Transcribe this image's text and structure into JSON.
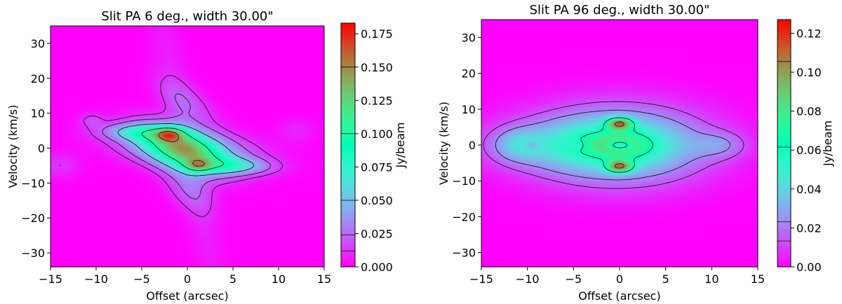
{
  "chart_data": [
    {
      "type": "heatmap",
      "title": "Slit PA 6 deg., width 30.00\"",
      "xlabel": "Offset (arcsec)",
      "ylabel": "Velocity (km/s)",
      "xlim": [
        -15,
        15
      ],
      "ylim": [
        -34,
        35
      ],
      "xticks": [
        -15,
        -10,
        -5,
        0,
        5,
        10,
        15
      ],
      "xtick_labels": [
        "−15",
        "−10",
        "−5",
        "0",
        "5",
        "10",
        "15"
      ],
      "yticks": [
        -30,
        -20,
        -10,
        0,
        10,
        20,
        30
      ],
      "ytick_labels": [
        "−30",
        "−20",
        "−10",
        "0",
        "10",
        "20",
        "30"
      ],
      "colorbar": {
        "label": "Jy/beam",
        "vmin": 0.0,
        "vmax": 0.183,
        "ticks": [
          0.0,
          0.025,
          0.05,
          0.075,
          0.1,
          0.125,
          0.15,
          0.175
        ],
        "tick_labels": [
          "0.000",
          "0.025",
          "0.050",
          "0.075",
          "0.100",
          "0.125",
          "0.150",
          "0.175"
        ],
        "contour_levels": [
          0.012,
          0.024,
          0.05,
          0.1,
          0.15
        ],
        "colormap": "rainbow"
      },
      "features": "X-shaped emission tilted along a diagonal, peak ~0.18 Jy/beam near offset -2 to 2 arcsec and velocity +5 to -6 km/s"
    },
    {
      "type": "heatmap",
      "title": "Slit PA 96 deg., width 30.00\"",
      "xlabel": "Offset (arcsec)",
      "ylabel": "Velocity (km/s)",
      "xlim": [
        -15,
        15
      ],
      "ylim": [
        -34,
        35
      ],
      "xticks": [
        -15,
        -10,
        -5,
        0,
        5,
        10,
        15
      ],
      "xtick_labels": [
        "−15",
        "−10",
        "−5",
        "0",
        "5",
        "10",
        "15"
      ],
      "yticks": [
        -30,
        -20,
        -10,
        0,
        10,
        20,
        30
      ],
      "ytick_labels": [
        "−30",
        "−20",
        "−10",
        "0",
        "10",
        "20",
        "30"
      ],
      "colorbar": {
        "label": "Jy/beam",
        "vmin": 0.0,
        "vmax": 0.127,
        "ticks": [
          0.0,
          0.02,
          0.04,
          0.06,
          0.08,
          0.1,
          0.12
        ],
        "tick_labels": [
          "0.00",
          "0.02",
          "0.04",
          "0.06",
          "0.08",
          "0.10",
          "0.12"
        ],
        "contour_levels": [
          0.0133,
          0.0232,
          0.0615,
          0.1055
        ],
        "colormap": "rainbow"
      },
      "features": "Ring-shaped emission centered at offset 0, two peaks ~0.12 Jy/beam at velocity +6 and -6 km/s, tail to -13 arcsec"
    }
  ]
}
